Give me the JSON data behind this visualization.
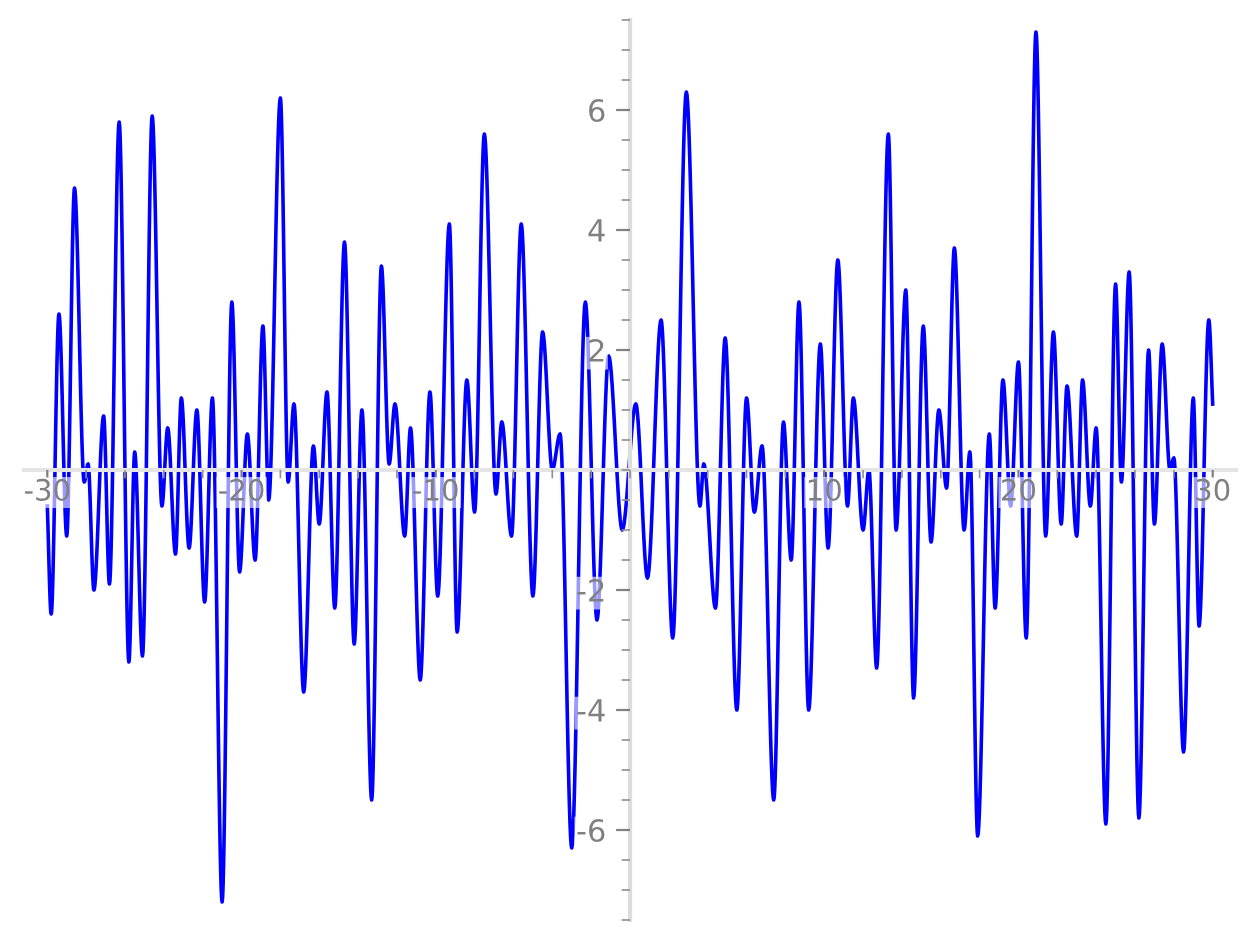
{
  "chart_data": {
    "type": "line",
    "x": [
      -30.0,
      -29.8,
      -29.4,
      -29.0,
      -28.6,
      -28.1,
      -27.9,
      -27.6,
      -27.1,
      -26.8,
      -26.3,
      -25.8,
      -25.5,
      -25.1,
      -24.6,
      -24.1,
      -23.8,
      -23.4,
      -23.1,
      -22.7,
      -22.3,
      -21.9,
      -21.5,
      -21.0,
      -20.5,
      -20.1,
      -19.7,
      -19.3,
      -18.9,
      -18.6,
      -18.0,
      -17.6,
      -17.3,
      -16.8,
      -16.3,
      -16.0,
      -15.6,
      -15.2,
      -14.7,
      -14.2,
      -13.8,
      -13.3,
      -12.8,
      -12.4,
      -12.1,
      -11.6,
      -11.3,
      -10.8,
      -10.3,
      -9.9,
      -9.3,
      -8.9,
      -8.4,
      -8.0,
      -7.5,
      -6.9,
      -6.6,
      -6.1,
      -5.6,
      -5.0,
      -4.5,
      -4.0,
      -3.6,
      -3.0,
      -2.3,
      -1.7,
      -1.1,
      -0.4,
      0.3,
      0.9,
      1.6,
      2.2,
      2.9,
      3.6,
      3.8,
      4.4,
      4.9,
      5.5,
      6.0,
      6.4,
      6.8,
      7.4,
      7.9,
      8.3,
      8.7,
      9.2,
      9.8,
      10.2,
      10.7,
      11.2,
      11.5,
      12.0,
      12.3,
      12.7,
      13.3,
      13.7,
      14.2,
      14.6,
      15.1,
      15.5,
      15.9,
      16.3,
      16.7,
      17.2,
      17.5,
      17.9,
      18.5,
      18.8,
      19.2,
      19.6,
      20.0,
      20.4,
      20.9,
      21.4,
      21.8,
      22.2,
      22.5,
      23.0,
      23.3,
      23.7,
      24.0,
      24.5,
      25.0,
      25.3,
      25.7,
      26.2,
      26.7,
      27.0,
      27.4,
      27.8,
      28.0,
      28.5,
      29.0,
      29.3,
      29.8,
      30.0
    ],
    "series": [
      {
        "color": "#0000ff",
        "values": [
          -0.6,
          -2.4,
          2.6,
          -1.1,
          4.7,
          -0.2,
          0.1,
          -2.0,
          0.9,
          -1.9,
          5.8,
          -3.2,
          0.3,
          -3.1,
          5.9,
          -0.6,
          0.7,
          -1.4,
          1.2,
          -1.3,
          1.0,
          -2.2,
          1.2,
          -7.2,
          2.8,
          -1.7,
          0.6,
          -1.5,
          2.4,
          -0.5,
          6.2,
          -0.2,
          1.1,
          -3.7,
          0.4,
          -0.9,
          1.3,
          -2.3,
          3.8,
          -2.9,
          1.0,
          -5.5,
          3.4,
          0.1,
          1.1,
          -1.1,
          0.7,
          -3.5,
          1.3,
          -2.1,
          4.1,
          -2.7,
          1.5,
          -0.7,
          5.6,
          -0.4,
          0.8,
          -1.1,
          4.1,
          -2.1,
          2.3,
          0.0,
          0.6,
          -6.3,
          2.8,
          -2.5,
          1.9,
          -1.0,
          1.1,
          -1.8,
          2.5,
          -2.8,
          6.3,
          -0.6,
          0.1,
          -2.3,
          2.2,
          -4.0,
          1.2,
          -0.7,
          0.4,
          -5.5,
          0.8,
          -1.5,
          2.8,
          -4.0,
          2.1,
          -1.3,
          3.5,
          -0.6,
          1.2,
          -1.0,
          0.0,
          -3.3,
          5.6,
          -1.0,
          3.0,
          -3.8,
          2.4,
          -1.2,
          1.0,
          -0.3,
          3.7,
          -1.0,
          0.3,
          -6.1,
          0.6,
          -2.3,
          1.5,
          -0.6,
          1.8,
          -2.8,
          7.3,
          -1.1,
          2.3,
          -0.9,
          1.4,
          -1.1,
          1.5,
          -0.6,
          0.7,
          -5.9,
          3.1,
          -0.2,
          3.3,
          -5.8,
          2.0,
          -0.9,
          2.1,
          0.0,
          0.2,
          -4.7,
          1.2,
          -2.6,
          2.5,
          1.1
        ]
      }
    ],
    "xlim": [
      -31.2,
      31.2
    ],
    "xticks": [
      -30,
      -20,
      -10,
      10,
      20,
      30
    ],
    "ylim": [
      -7.5,
      7.5
    ],
    "yticks": [
      -6,
      -4,
      -2,
      2,
      4,
      6
    ],
    "grid": false,
    "legend": false,
    "marker": "none",
    "line_style": "solid"
  }
}
